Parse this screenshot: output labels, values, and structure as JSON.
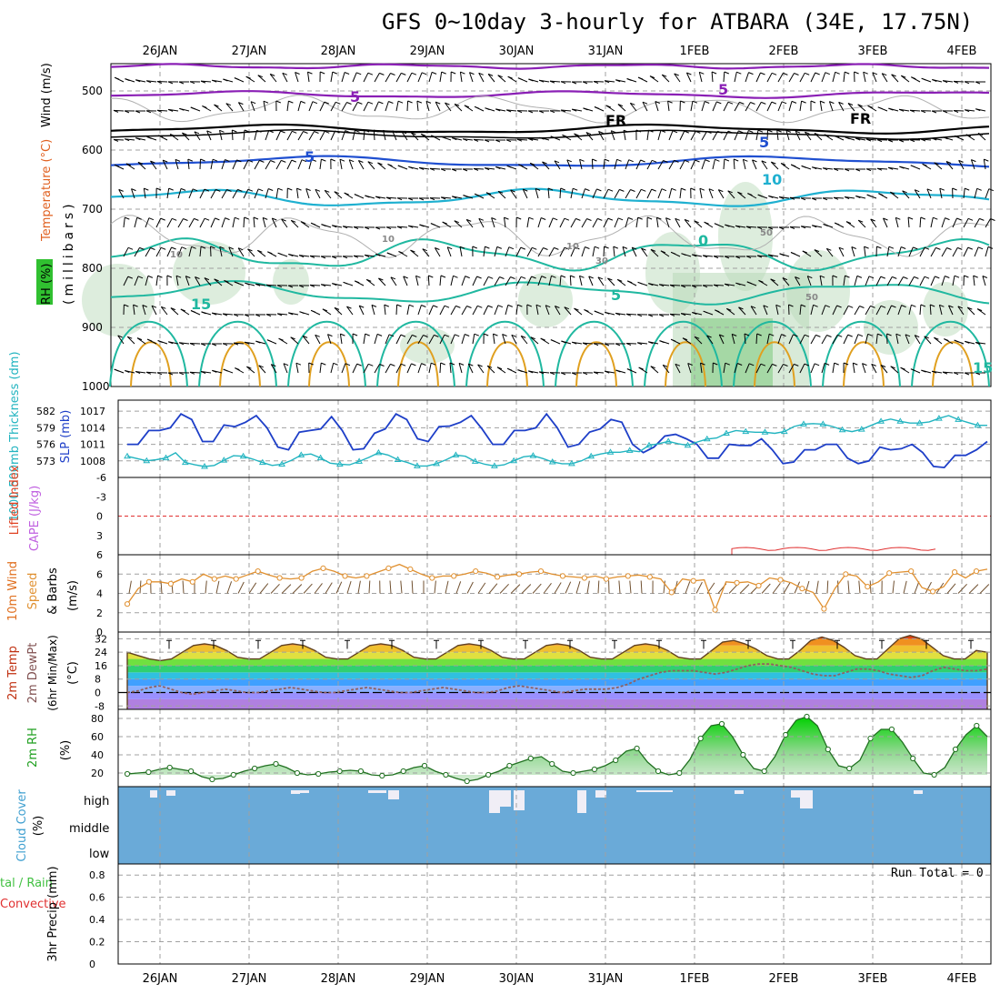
{
  "title": "GFS 0~10day 3-hourly for ATBARA (34E, 17.75N)",
  "date_labels": [
    "26JAN",
    "27JAN",
    "28JAN",
    "29JAN",
    "30JAN",
    "31JAN",
    "1FEB",
    "2FEB",
    "3FEB",
    "4FEB"
  ],
  "colors": {
    "frame": "#000000",
    "grid": "#a0a0a0",
    "purple": "#8a1fb5",
    "blue": "#1f4fd0",
    "cyan": "#1fb0d0",
    "teal": "#20b8a0",
    "orange": "#e0a020",
    "slp": "#1e3fc8",
    "thickness": "#22b4c0",
    "wind_speed": "#e09030",
    "rh2m": "#40a040",
    "cloud": "#6aaad8",
    "precip_rain": "#40c040",
    "precip_conv": "#e03030"
  },
  "panels": {
    "upper": {
      "ylabel_wind": "Wind (m/s)",
      "ylabel_temp": "Temperature (°C)",
      "ylabel_rh": "RH (%)",
      "ylabel_p": "(millibars)",
      "yticks": [
        500,
        600,
        700,
        800,
        900,
        1000
      ],
      "contour_labels": [
        "5",
        "5",
        "FR",
        "FR",
        "5",
        "5",
        "10",
        "15",
        "5",
        "10",
        "10",
        "30",
        "50",
        "50",
        "10",
        "15",
        "0"
      ]
    },
    "slp": {
      "ylabel_left": "1000-500mb Thickness (dm)",
      "ylabel_right": "SLP (mb)",
      "thickness_ticks": [
        "582",
        "579",
        "576",
        "573"
      ],
      "slp_ticks": [
        "1017",
        "1014",
        "1011",
        "1008"
      ]
    },
    "cape": {
      "ylabel_li": "Lifted Index",
      "ylabel_cape": "CAPE (J/kg)",
      "yticks": [
        "-6",
        "-3",
        "0",
        "3",
        "6"
      ]
    },
    "wind10": {
      "ylabel_a": "10m Wind",
      "ylabel_b": "Speed",
      "ylabel_c": "& Barbs",
      "ylabel_unit": "(m/s)",
      "yticks": [
        "6",
        "4",
        "2",
        "0"
      ]
    },
    "temp2m": {
      "ylabel_a": "2m Temp",
      "ylabel_b": "2m DewPt",
      "ylabel_c": "(6hr Min/Max)",
      "ylabel_unit": "(°C)",
      "yticks": [
        "32",
        "24",
        "16",
        "8",
        "0",
        "-8"
      ]
    },
    "rh2m": {
      "ylabel": "2m RH",
      "ylabel_unit": "(%)",
      "yticks": [
        "80",
        "60",
        "40",
        "20"
      ]
    },
    "cloud": {
      "ylabel": "Cloud Cover",
      "ylabel_unit": "(%)",
      "levels": [
        "high",
        "middle",
        "low"
      ]
    },
    "precip": {
      "ylabel_a": "tal / Rain",
      "ylabel_b": "Convective",
      "ylabel_c": "3hr Precip (mm)",
      "yticks": [
        "0.8",
        "0.6",
        "0.4",
        "0.2",
        "0"
      ],
      "run_total": "Run Total = 0"
    }
  },
  "chart_data": [
    {
      "type": "line",
      "name": "slp_thickness",
      "x_start_day": 25.5,
      "x_end_day": 35.25,
      "series": [
        {
          "name": "SLP (mb)",
          "values": [
            1011,
            1011,
            1013.5,
            1013.5,
            1014,
            1016.5,
            1015.5,
            1011.5,
            1011.5,
            1014.5,
            1014.2,
            1015,
            1016.2,
            1014,
            1010.5,
            1010,
            1013.2,
            1013.5,
            1013.8,
            1016,
            1013.5,
            1010,
            1010.2,
            1013,
            1013.8,
            1016.5,
            1015.5,
            1012,
            1011.5,
            1014.2,
            1014.3,
            1015,
            1016.2,
            1013.8,
            1011,
            1011,
            1013.5,
            1013.5,
            1014,
            1016.5,
            1014,
            1010.5,
            1011,
            1013.2,
            1013.8,
            1015.5,
            1015,
            1011,
            1009.5,
            1010.5,
            1012.5,
            1012.8,
            1012,
            1011,
            1008.5,
            1008.5,
            1011,
            1010.8,
            1010.8,
            1012,
            1010,
            1007.5,
            1007.8,
            1010,
            1010,
            1011,
            1011,
            1008.5,
            1007.5,
            1008,
            1010.5,
            1010,
            1010.2,
            1011,
            1009.5,
            1007,
            1006.8,
            1009,
            1009,
            1010,
            1011.5
          ]
        },
        {
          "name": "Thickness (dm)",
          "values": [
            574.2,
            573.8,
            573.4,
            573.6,
            573.9,
            574.8,
            573.1,
            572.7,
            572.4,
            572.6,
            573.5,
            574.3,
            574.2,
            573.7,
            573.1,
            572.6,
            572.8,
            573.5,
            574.4,
            574.6,
            573.9,
            573.0,
            572.8,
            572.7,
            573.3,
            574.0,
            574.8,
            574.4,
            573.6,
            573.1,
            572.5,
            572.5,
            572.9,
            573.6,
            574.4,
            574.2,
            573.3,
            572.8,
            572.5,
            572.7,
            573.4,
            574.1,
            574.3,
            573.8,
            573.2,
            572.9,
            572.9,
            573.4,
            574.2,
            574.6,
            574.9,
            574.9,
            575.2,
            575.0,
            576.1,
            576.4,
            576.8,
            576.4,
            576.1,
            576.7,
            577.2,
            577.4,
            578.2,
            578.7,
            578.5,
            578.4,
            578.4,
            578.2,
            578.5,
            579.4,
            579.8,
            579.9,
            579.8,
            579.4,
            578.8,
            578.5,
            578.9,
            579.6,
            580.3,
            580.7,
            580.3,
            580.0,
            580.0,
            580.2,
            580.8,
            581.3,
            580.6,
            580.1,
            579.6,
            579.6
          ]
        }
      ]
    },
    {
      "type": "line",
      "name": "wind10m_speed",
      "x_start_day": 25.5,
      "x_end_day": 35.25,
      "series": [
        {
          "name": "10m Wind Speed (m/s)",
          "values": [
            2.9,
            4.5,
            5.2,
            5.2,
            5.0,
            5.5,
            5.2,
            6.0,
            5.5,
            5.8,
            5.5,
            5.9,
            6.3,
            5.9,
            5.6,
            5.5,
            5.6,
            6.3,
            6.6,
            6.3,
            5.8,
            5.6,
            5.8,
            6.2,
            6.6,
            7.0,
            6.5,
            6.0,
            5.6,
            5.8,
            5.8,
            6.0,
            6.3,
            6.1,
            5.7,
            5.9,
            6.0,
            6.2,
            6.3,
            6.0,
            5.8,
            5.7,
            5.6,
            5.8,
            5.5,
            5.7,
            5.8,
            5.9,
            5.7,
            5.5,
            4.1,
            5.5,
            5.3,
            5.4,
            2.3,
            5.2,
            5.1,
            5.2,
            4.8,
            5.6,
            5.4,
            5.1,
            4.5,
            4.1,
            2.4,
            4.5,
            6.0,
            5.8,
            4.7,
            5.2,
            6.1,
            6.2,
            6.3,
            4.6,
            4.2,
            4.7,
            6.2,
            5.6,
            6.3,
            6.5
          ]
        }
      ]
    },
    {
      "type": "area",
      "name": "temp2m",
      "x_start_day": 25.5,
      "x_end_day": 35.25,
      "series": [
        {
          "name": "2m Temp (°C)",
          "values": [
            24,
            22,
            20,
            19,
            20,
            24,
            28,
            29,
            28,
            25,
            21,
            20,
            20,
            24,
            28,
            29,
            28,
            25,
            21,
            20,
            20,
            24,
            28,
            29,
            28,
            25,
            21,
            20,
            20,
            24,
            28,
            29,
            28,
            25,
            21,
            20,
            20,
            24,
            28,
            29,
            28,
            25,
            21,
            20,
            20,
            24,
            28,
            29,
            28,
            25,
            21,
            20,
            20,
            25,
            30,
            31,
            29,
            26,
            22,
            20,
            20,
            25,
            31,
            33,
            31,
            27,
            22,
            20,
            20,
            26,
            32,
            34,
            32,
            27,
            22,
            20,
            20,
            25,
            24
          ]
        },
        {
          "name": "2m DewPt (°C)",
          "values": [
            0,
            1,
            3,
            4,
            2,
            0,
            -1,
            0,
            1,
            2,
            1,
            0,
            0,
            1,
            2,
            3,
            2,
            1,
            0,
            0,
            1,
            2,
            3,
            2,
            1,
            0,
            0,
            1,
            2,
            3,
            2,
            1,
            0,
            0,
            1,
            3,
            4,
            3,
            2,
            1,
            0,
            1,
            2,
            2,
            2,
            3,
            5,
            8,
            10,
            12,
            13,
            13,
            13,
            12,
            11,
            12,
            14,
            16,
            17,
            17,
            16,
            15,
            13,
            11,
            10,
            10,
            12,
            14,
            14,
            13,
            11,
            10,
            9,
            10,
            13,
            15,
            14,
            13,
            13,
            14
          ]
        }
      ]
    },
    {
      "type": "area",
      "name": "rh2m",
      "x_start_day": 25.5,
      "x_end_day": 35.25,
      "series": [
        {
          "name": "2m RH (%)",
          "values": [
            19,
            20,
            21,
            24,
            26,
            24,
            22,
            16,
            13,
            14,
            18,
            22,
            25,
            28,
            30,
            26,
            20,
            18,
            19,
            21,
            22,
            23,
            22,
            18,
            17,
            18,
            22,
            26,
            28,
            22,
            18,
            14,
            11,
            13,
            18,
            22,
            28,
            32,
            36,
            38,
            30,
            22,
            20,
            22,
            24,
            28,
            34,
            44,
            47,
            32,
            22,
            18,
            20,
            35,
            58,
            72,
            74,
            60,
            40,
            25,
            22,
            38,
            62,
            78,
            82,
            72,
            46,
            28,
            25,
            34,
            58,
            68,
            68,
            54,
            36,
            20,
            18,
            26,
            46,
            62,
            72,
            60
          ]
        }
      ]
    },
    {
      "type": "bar",
      "name": "precip",
      "y_range": [
        0,
        0.9
      ],
      "series": [
        {
          "name": "3hr Precip (mm)",
          "values": []
        }
      ]
    }
  ]
}
